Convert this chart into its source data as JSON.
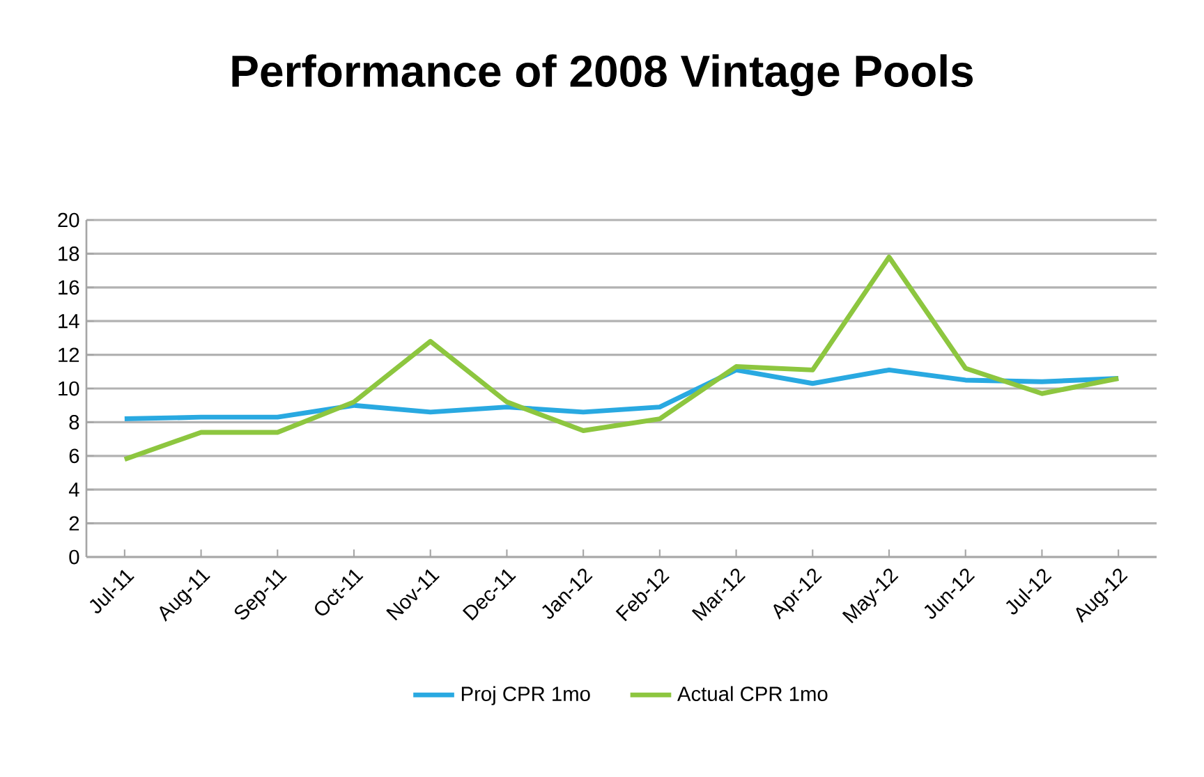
{
  "chart_data": {
    "type": "line",
    "title": "Performance of 2008 Vintage Pools",
    "categories": [
      "Jul-11",
      "Aug-11",
      "Sep-11",
      "Oct-11",
      "Nov-11",
      "Dec-11",
      "Jan-12",
      "Feb-12",
      "Mar-12",
      "Apr-12",
      "May-12",
      "Jun-12",
      "Jul-12",
      "Aug-12"
    ],
    "series": [
      {
        "name": "Proj CPR 1mo",
        "color": "#29a9e1",
        "values": [
          8.2,
          8.3,
          8.3,
          9.0,
          8.6,
          8.9,
          8.6,
          8.9,
          11.1,
          10.3,
          11.1,
          10.5,
          10.4,
          10.6
        ]
      },
      {
        "name": "Actual CPR 1mo",
        "color": "#8dc63f",
        "values": [
          5.8,
          7.4,
          7.4,
          9.2,
          12.8,
          9.2,
          7.5,
          8.2,
          11.3,
          11.1,
          17.8,
          11.2,
          9.7,
          10.6
        ]
      }
    ],
    "ylim": [
      0,
      20
    ],
    "yticks": [
      0,
      2,
      4,
      6,
      8,
      10,
      12,
      14,
      16,
      18,
      20
    ],
    "grid": "y",
    "legend": "bottom",
    "marker": "none",
    "line_style": "solid"
  }
}
